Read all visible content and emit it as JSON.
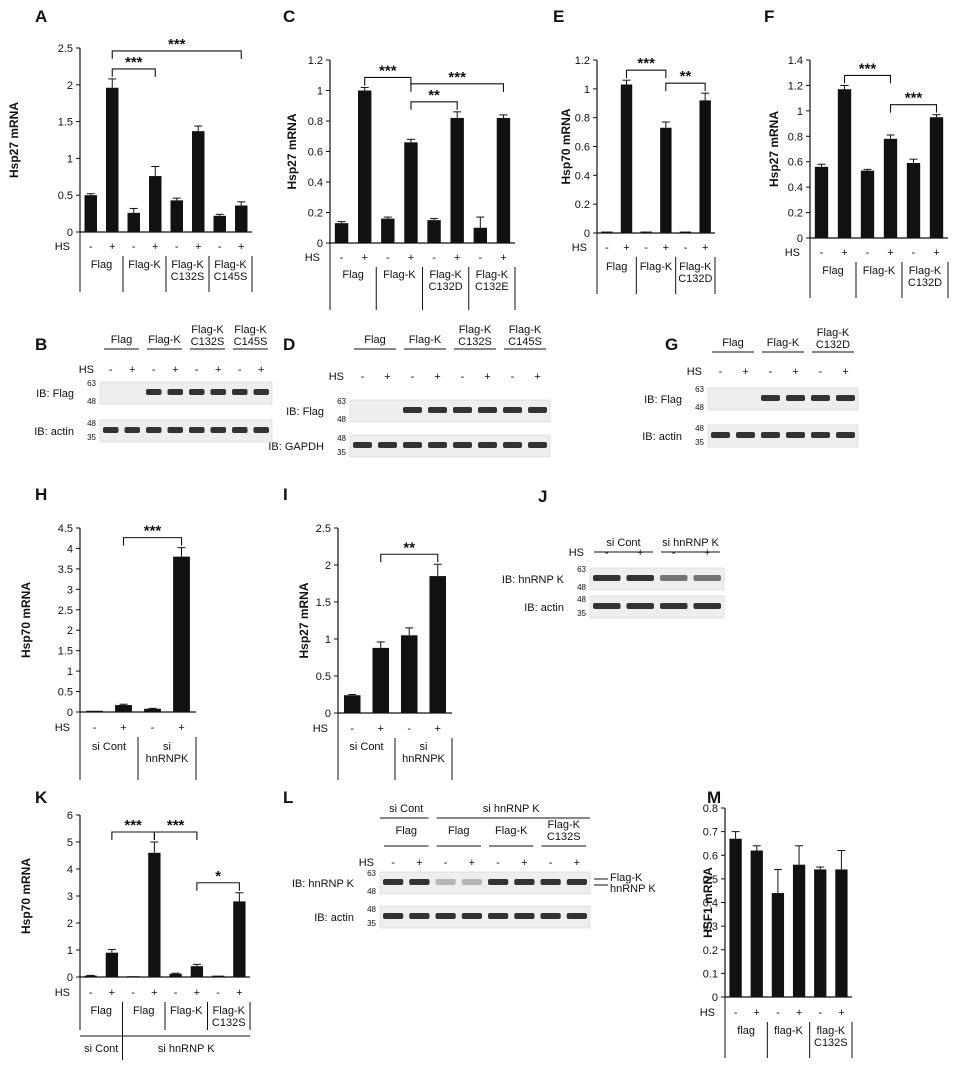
{
  "chart_data": [
    {
      "id": "A",
      "type": "bar",
      "panel_label": "A",
      "ylabel": "Hsp27 mRNA",
      "ylim": [
        0,
        2.5
      ],
      "ticks": [
        "0",
        "0.5",
        "1",
        "1.5",
        "2",
        "2.5"
      ],
      "hs": [
        "-",
        "+",
        "-",
        "+",
        "-",
        "+",
        "-",
        "+"
      ],
      "values": [
        0.5,
        1.96,
        0.26,
        0.76,
        0.43,
        1.37,
        0.22,
        0.36
      ],
      "errors": [
        0.02,
        0.12,
        0.06,
        0.13,
        0.03,
        0.07,
        0.02,
        0.05
      ],
      "groups": [
        "Flag",
        "Flag-K",
        "Flag-K C132S",
        "Flag-K C145S"
      ],
      "significance": [
        {
          "label": "***",
          "from": 1,
          "to": 3
        },
        {
          "label": "***",
          "from": 1,
          "to": 7
        }
      ]
    },
    {
      "id": "C",
      "type": "bar",
      "panel_label": "C",
      "ylabel": "Hsp27 mRNA",
      "ylim": [
        0,
        1.2
      ],
      "ticks": [
        "0",
        "0.2",
        "0.4",
        "0.6",
        "0.8",
        "1",
        "1.2"
      ],
      "hs": [
        "-",
        "+",
        "-",
        "+",
        "-",
        "+",
        "-",
        "+"
      ],
      "values": [
        0.13,
        1.0,
        0.16,
        0.66,
        0.15,
        0.82,
        0.1,
        0.82
      ],
      "errors": [
        0.01,
        0.02,
        0.01,
        0.02,
        0.01,
        0.04,
        0.07,
        0.02
      ],
      "groups": [
        "Flag",
        "Flag-K",
        "Flag-K C132D",
        "Flag-K C132E"
      ],
      "significance": [
        {
          "label": "***",
          "from": 1,
          "to": 3
        },
        {
          "label": "**",
          "from": 3,
          "to": 5
        },
        {
          "label": "***",
          "from": 3,
          "to": 7
        }
      ]
    },
    {
      "id": "E",
      "type": "bar",
      "panel_label": "E",
      "ylabel": "Hsp70 mRNA",
      "ylim": [
        0,
        1.2
      ],
      "ticks": [
        "0",
        "0.2",
        "0.4",
        "0.6",
        "0.8",
        "1",
        "1.2"
      ],
      "hs": [
        "-",
        "+",
        "-",
        "+",
        "-",
        "+"
      ],
      "values": [
        0.01,
        1.03,
        0.01,
        0.73,
        0.01,
        0.92
      ],
      "errors": [
        0,
        0.03,
        0,
        0.04,
        0,
        0.05
      ],
      "groups": [
        "Flag",
        "Flag-K",
        "Flag-K C132D"
      ],
      "significance": [
        {
          "label": "***",
          "from": 1,
          "to": 3
        },
        {
          "label": "**",
          "from": 3,
          "to": 5
        }
      ]
    },
    {
      "id": "F",
      "type": "bar",
      "panel_label": "F",
      "ylabel": "Hsp27 mRNA",
      "ylim": [
        0,
        1.4
      ],
      "ticks": [
        "0",
        "0.2",
        "0.4",
        "0.6",
        "0.8",
        "1",
        "1.2",
        "1.4"
      ],
      "hs": [
        "-",
        "+",
        "-",
        "+",
        "-",
        "+"
      ],
      "values": [
        0.56,
        1.17,
        0.53,
        0.78,
        0.59,
        0.95
      ],
      "errors": [
        0.02,
        0.03,
        0.01,
        0.03,
        0.03,
        0.02
      ],
      "groups": [
        "Flag",
        "Flag-K",
        "Flag-K C132D"
      ],
      "significance": [
        {
          "label": "***",
          "from": 1,
          "to": 3
        },
        {
          "label": "***",
          "from": 3,
          "to": 5
        }
      ]
    },
    {
      "id": "H",
      "type": "bar",
      "panel_label": "H",
      "ylabel": "Hsp70 mRNA",
      "ylim": [
        0,
        4.5
      ],
      "ticks": [
        "0",
        "0.5",
        "1",
        "1.5",
        "2",
        "2.5",
        "3",
        "3.5",
        "4",
        "4.5"
      ],
      "hs": [
        "-",
        "+",
        "-",
        "+"
      ],
      "values": [
        0.03,
        0.17,
        0.08,
        3.8
      ],
      "errors": [
        0,
        0.02,
        0.01,
        0.22
      ],
      "groups": [
        "si Cont",
        "si hnRNPK"
      ],
      "significance": [
        {
          "label": "***",
          "from": 1,
          "to": 3
        }
      ]
    },
    {
      "id": "I",
      "type": "bar",
      "panel_label": "I",
      "ylabel": "Hsp27 mRNA",
      "ylim": [
        0,
        2.5
      ],
      "ticks": [
        "0",
        "0.5",
        "1",
        "1.5",
        "2",
        "2.5"
      ],
      "hs": [
        "-",
        "+",
        "-",
        "+"
      ],
      "values": [
        0.24,
        0.88,
        1.05,
        1.85
      ],
      "errors": [
        0.01,
        0.08,
        0.1,
        0.16
      ],
      "groups": [
        "si Cont",
        "si hnRNPK"
      ],
      "significance": [
        {
          "label": "**",
          "from": 1,
          "to": 3
        }
      ]
    },
    {
      "id": "K",
      "type": "bar",
      "panel_label": "K",
      "ylabel": "Hsp70 mRNA",
      "ylim": [
        0,
        6
      ],
      "ticks": [
        "0",
        "1",
        "2",
        "3",
        "4",
        "5",
        "6"
      ],
      "hs": [
        "-",
        "+",
        "-",
        "+",
        "-",
        "+",
        "-",
        "+"
      ],
      "values": [
        0.05,
        0.9,
        0.03,
        4.6,
        0.12,
        0.4,
        0.05,
        2.8
      ],
      "errors": [
        0.01,
        0.12,
        0,
        0.4,
        0.02,
        0.07,
        0,
        0.32
      ],
      "groups": [
        "Flag",
        "Flag",
        "Flag-K",
        "Flag-K C132S"
      ],
      "supergroups": [
        "si Cont",
        "si hnRNP K"
      ],
      "significance": [
        {
          "label": "***",
          "from": 1,
          "to": 3
        },
        {
          "label": "***",
          "from": 3,
          "to": 5
        },
        {
          "label": "*",
          "from": 5,
          "to": 7
        }
      ]
    },
    {
      "id": "M",
      "type": "bar",
      "panel_label": "M",
      "ylabel": "HSF1 mRNA",
      "ylim": [
        0,
        0.8
      ],
      "ticks": [
        "0",
        "0.1",
        "0.2",
        "0.3",
        "0.4",
        "0.5",
        "0.6",
        "0.7",
        "0.8"
      ],
      "hs": [
        "-",
        "+",
        "-",
        "+",
        "-",
        "+"
      ],
      "values": [
        0.67,
        0.62,
        0.44,
        0.56,
        0.54,
        0.54
      ],
      "errors": [
        0.03,
        0.02,
        0.1,
        0.08,
        0.01,
        0.08
      ],
      "groups": [
        "flag",
        "flag-K",
        "flag-K C132S"
      ],
      "significance": []
    }
  ],
  "blots": {
    "B": {
      "label": "B",
      "headers": [
        "Flag",
        "Flag-K",
        "Flag-K C132S",
        "Flag-K C145S"
      ],
      "ib": [
        "IB: Flag",
        "IB: actin"
      ],
      "mw": [
        "63",
        "48",
        "35"
      ]
    },
    "D": {
      "label": "D",
      "headers": [
        "Flag",
        "Flag-K",
        "Flag-K C132S",
        "Flag-K C145S"
      ],
      "ib": [
        "IB: Flag",
        "IB: GAPDH"
      ],
      "mw": [
        "63",
        "48",
        "35"
      ]
    },
    "G": {
      "label": "G",
      "headers": [
        "Flag",
        "Flag-K",
        "Flag-K C132D"
      ],
      "ib": [
        "IB: Flag",
        "IB: actin"
      ],
      "mw": [
        "63",
        "48",
        "35"
      ]
    },
    "J": {
      "label": "J",
      "headers": [
        "si Cont",
        "si hnRNP K"
      ],
      "ib": [
        "IB: hnRNP K",
        "IB: actin"
      ],
      "mw": [
        "63",
        "48",
        "35"
      ]
    },
    "L": {
      "label": "L",
      "headers": [
        "si Cont",
        "si hnRNP K",
        "Flag",
        "Flag",
        "Flag-K",
        "Flag-K C132S"
      ],
      "ib": [
        "IB: hnRNP K",
        "IB: actin"
      ],
      "mw": [
        "63",
        "48",
        "35"
      ],
      "side": [
        "Flag-K",
        "hnRNP K"
      ]
    }
  },
  "hs_label": "HS"
}
